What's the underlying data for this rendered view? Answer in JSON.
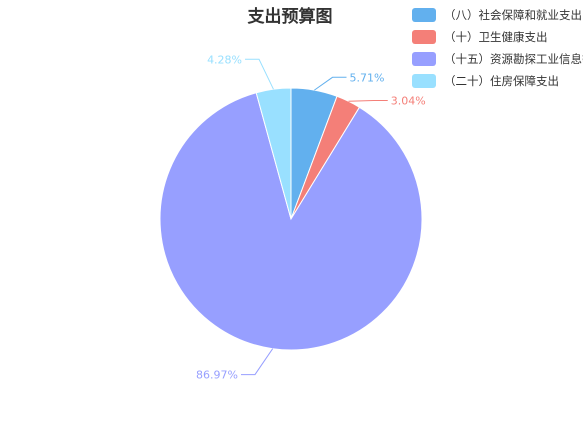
{
  "chart_data": {
    "type": "pie",
    "title": "支出预算图",
    "legend_position": "top-right",
    "slices": [
      {
        "name": "（八）社会保障和就业支出",
        "value": 5.71,
        "label": "5.71%",
        "color": "#62b0ee"
      },
      {
        "name": "（十）卫生健康支出",
        "value": 3.04,
        "label": "3.04%",
        "color": "#f47f78"
      },
      {
        "name": "（十五）资源勘探工业信息等支出",
        "value": 86.97,
        "label": "86.97%",
        "color": "#979fff"
      },
      {
        "name": "（二十）住房保障支出",
        "value": 4.28,
        "label": "4.28%",
        "color": "#99e0ff"
      }
    ]
  }
}
